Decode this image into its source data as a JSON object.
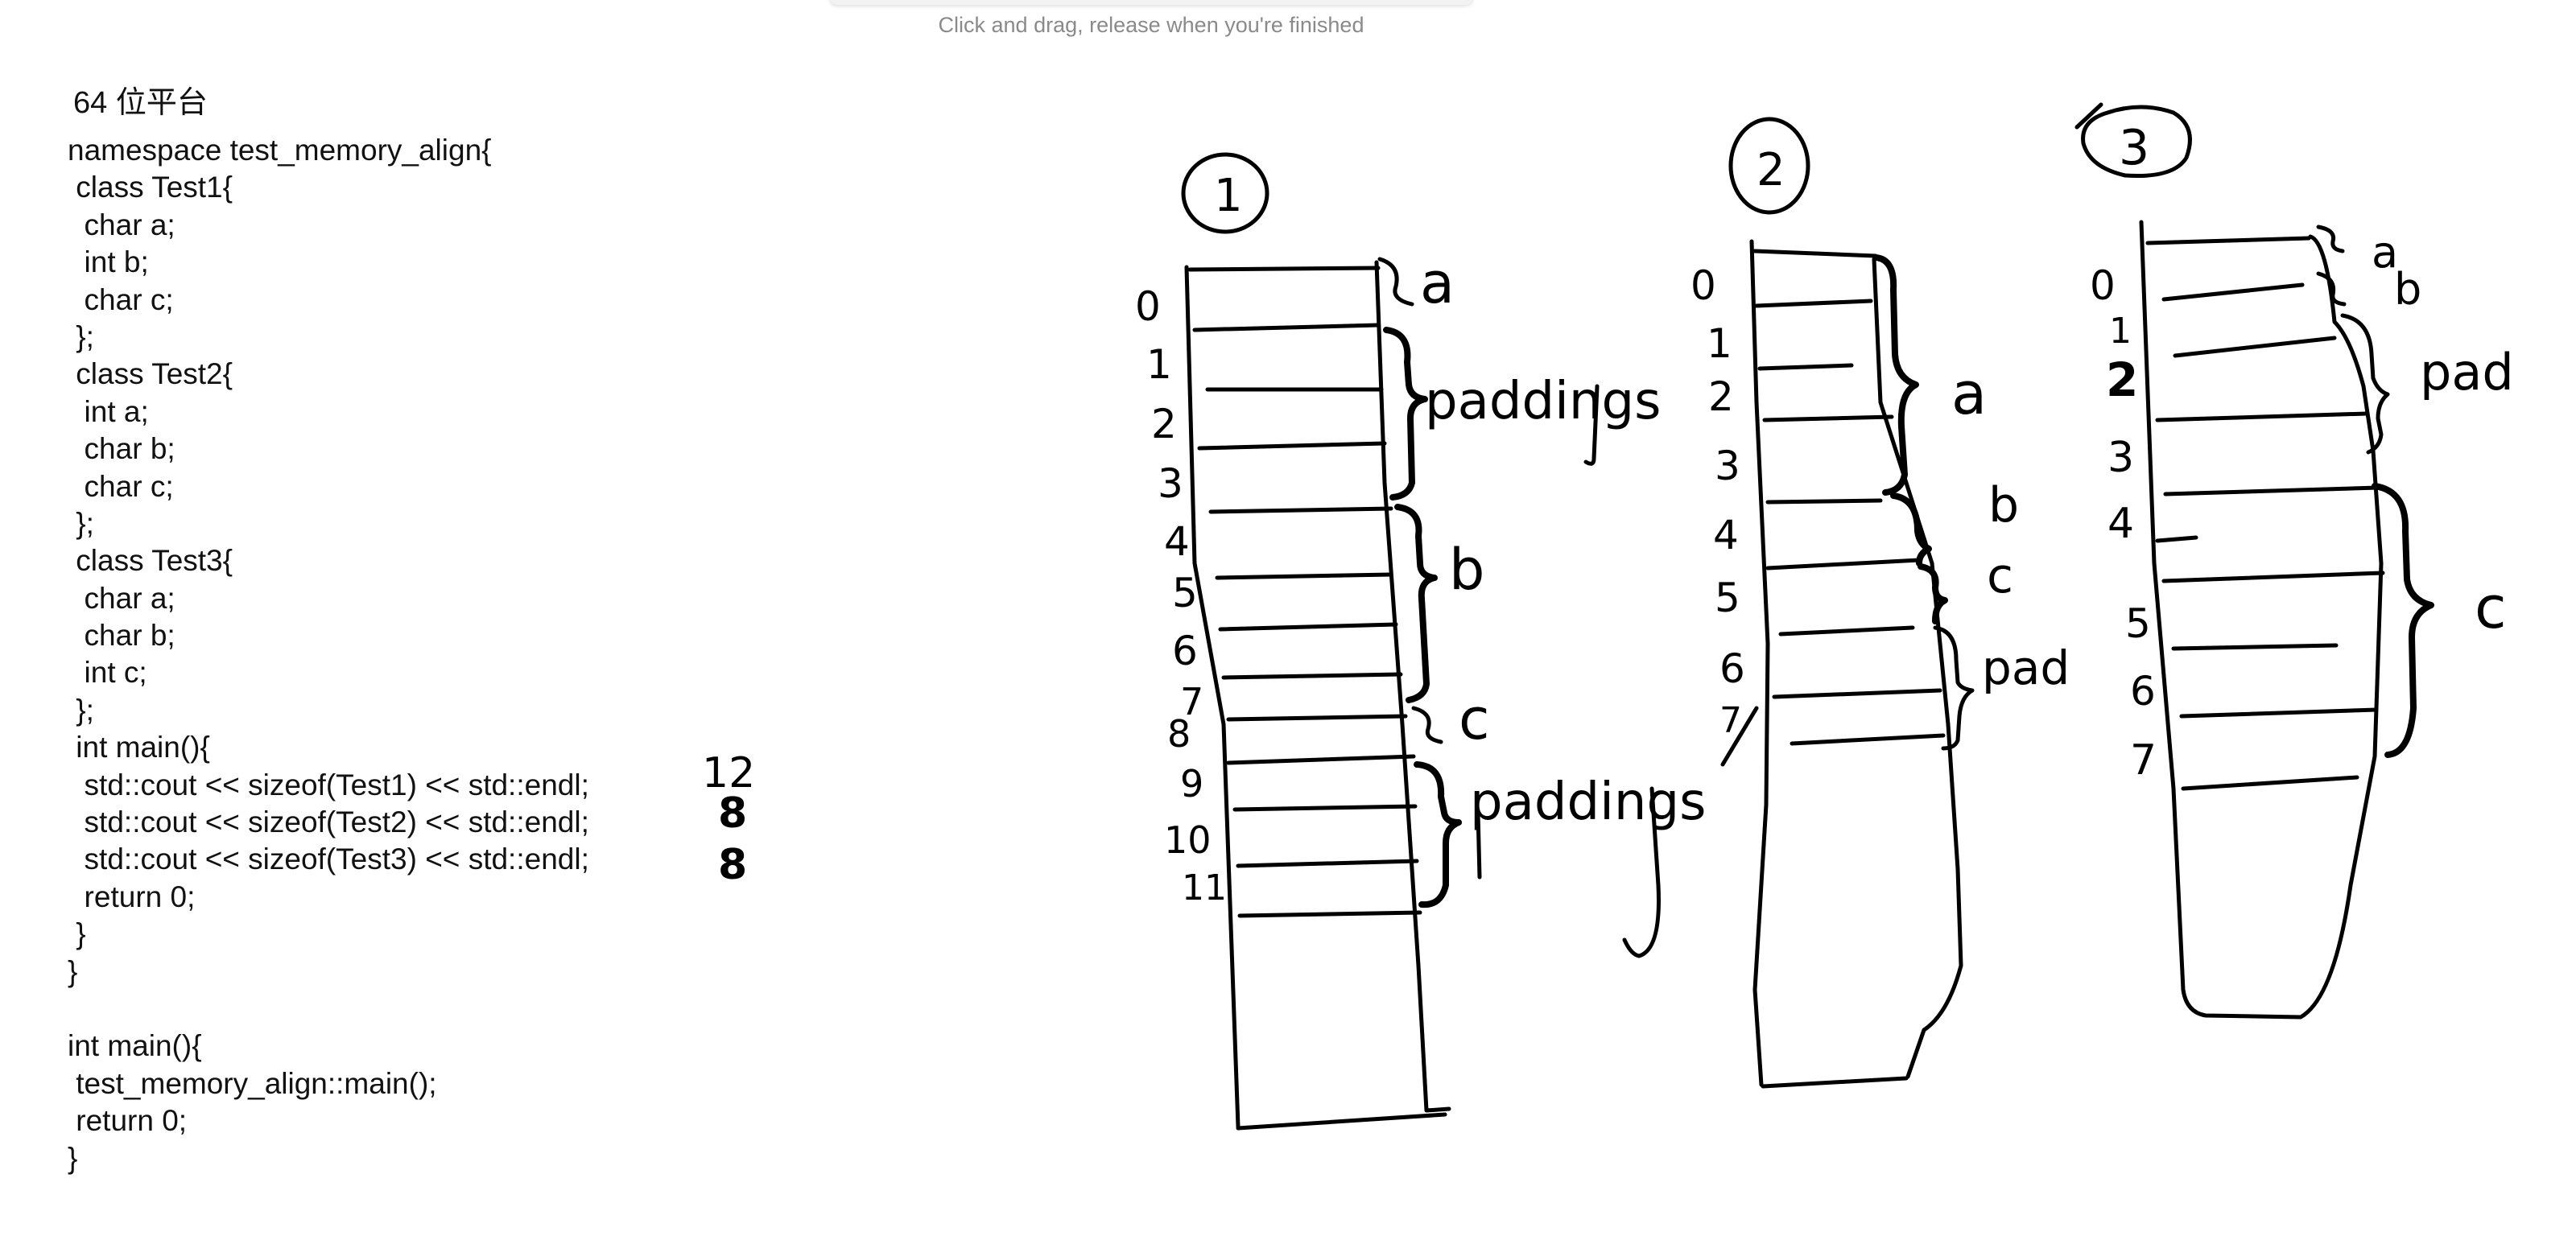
{
  "hint": "Click and drag, release when you're finished",
  "title": "64 位平台",
  "code_lines": [
    "namespace test_memory_align{",
    " class Test1{",
    "  char a;",
    "  int b;",
    "  char c;",
    " };",
    " class Test2{",
    "  int a;",
    "  char b;",
    "  char c;",
    " };",
    " class Test3{",
    "  char a;",
    "  char b;",
    "  int c;",
    " };",
    " int main(){",
    "  std::cout << sizeof(Test1) << std::endl;",
    "  std::cout << sizeof(Test2) << std::endl;",
    "  std::cout << sizeof(Test3) << std::endl;",
    "  return 0;",
    " }",
    "}",
    "",
    "int main(){",
    " test_memory_align::main();",
    " return 0;",
    "}"
  ],
  "sketch": {
    "results": [
      "12",
      "8",
      "8"
    ],
    "diagram1": {
      "label": "1",
      "offsets": [
        "0",
        "1",
        "2",
        "3",
        "4",
        "5",
        "6",
        "7",
        "8",
        "9",
        "10",
        "11"
      ],
      "annotations": [
        "a",
        "paddings",
        "b",
        "c",
        "paddings"
      ]
    },
    "diagram2": {
      "label": "2",
      "offsets": [
        "0",
        "1",
        "2",
        "3",
        "4",
        "5",
        "6",
        "7"
      ],
      "annotations": [
        "a",
        "b",
        "c",
        "pad"
      ]
    },
    "diagram3": {
      "label": "3",
      "offsets": [
        "0",
        "1",
        "2",
        "3",
        "4",
        "5",
        "6",
        "7"
      ],
      "annotations": [
        "a",
        "b",
        "pad",
        "c"
      ]
    }
  }
}
